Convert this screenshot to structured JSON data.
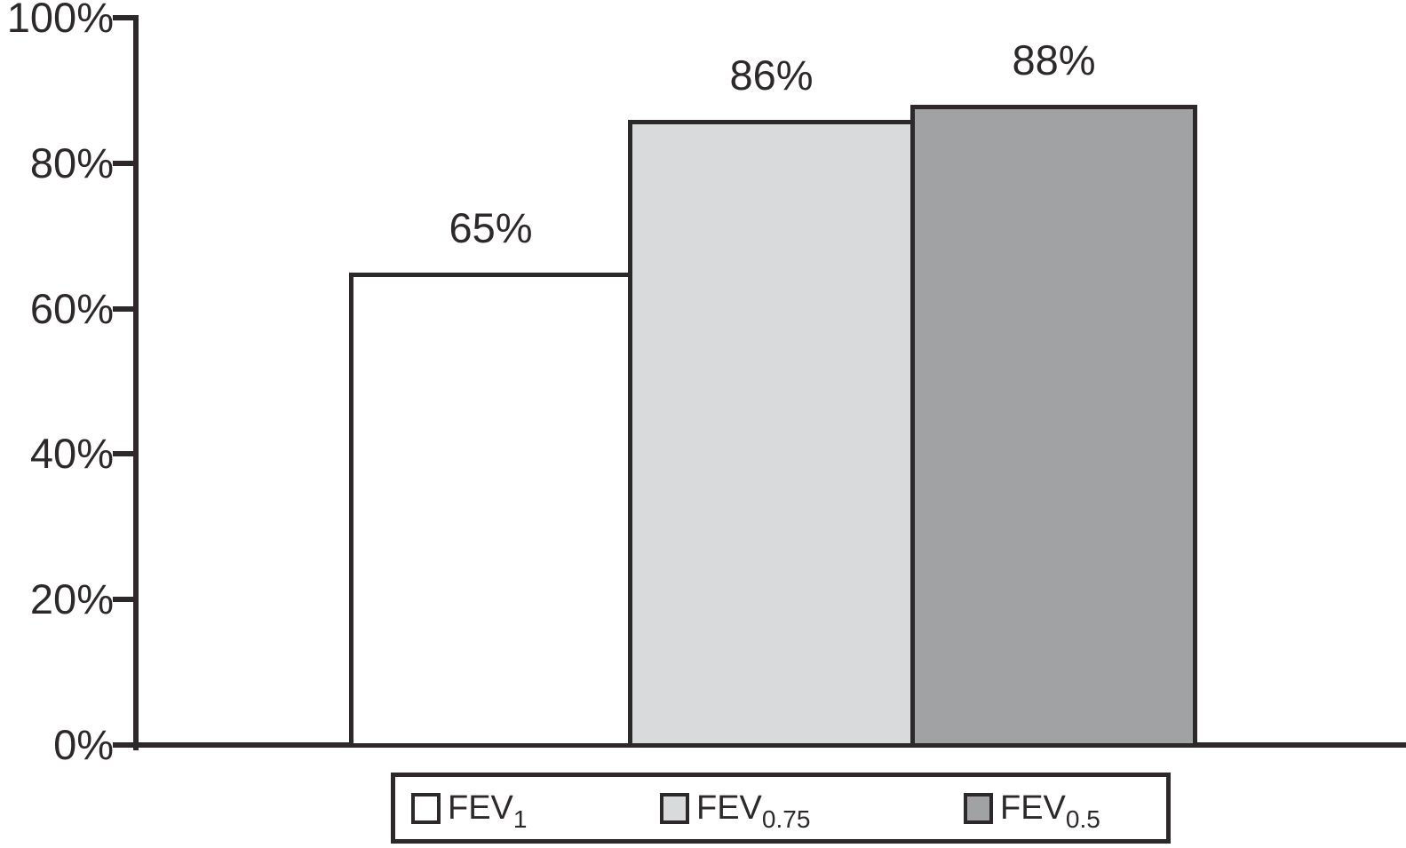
{
  "chart_data": {
    "type": "bar",
    "categories": [
      "FEV1",
      "FEV0.75",
      "FEV0.5"
    ],
    "values": [
      65,
      86,
      88
    ],
    "bar_labels": [
      "65%",
      "86%",
      "88%"
    ],
    "bar_colors": [
      "#ffffff",
      "#d9dadb",
      "#a1a2a4"
    ],
    "outline_color": "#2d292a",
    "title": "",
    "xlabel": "",
    "ylabel": "",
    "ylim": [
      0,
      100
    ],
    "grid": false,
    "yticks": [
      {
        "value": 0,
        "label": "0%"
      },
      {
        "value": 20,
        "label": "20%"
      },
      {
        "value": 40,
        "label": "40%"
      },
      {
        "value": 60,
        "label": "60%"
      },
      {
        "value": 80,
        "label": "80%"
      },
      {
        "value": 100,
        "label": "100%"
      }
    ],
    "legend": {
      "position": "bottom",
      "entries": [
        {
          "base": "FEV",
          "subscript": "1",
          "swatch_color": "#ffffff"
        },
        {
          "base": "FEV",
          "subscript": "0.75",
          "swatch_color": "#d9dadb"
        },
        {
          "base": "FEV",
          "subscript": "0.5",
          "swatch_color": "#a1a2a4"
        }
      ]
    }
  }
}
